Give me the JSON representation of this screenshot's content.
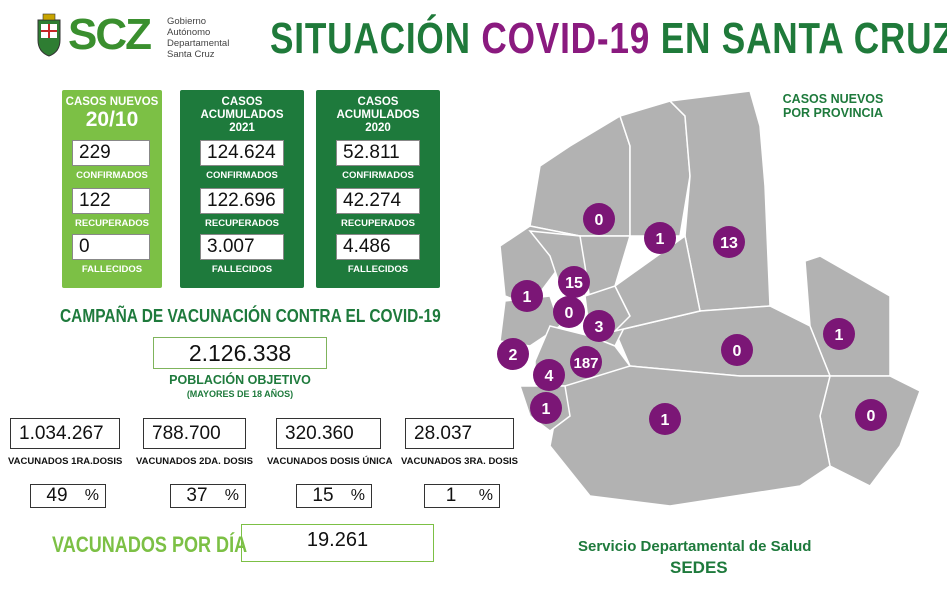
{
  "logo": {
    "brand": "SCZ",
    "subtitle_lines": [
      "Gobierno",
      "Autónomo",
      "Departamental",
      "Santa Cruz"
    ]
  },
  "title": {
    "part1": "SITUACIÓN ",
    "part2": "COVID-19",
    "part3": " EN SANTA CRUZ"
  },
  "panel_new": {
    "header": "CASOS NUEVOS",
    "date": "20/10",
    "confirmed": "229",
    "confirmed_label": "CONFIRMADOS",
    "recovered": "122",
    "recovered_label": "RECUPERADOS",
    "deceased": "0",
    "deceased_label": "FALLECIDOS"
  },
  "panel_2021": {
    "header": "CASOS ACUMULADOS",
    "year": "2021",
    "confirmed": "124.624",
    "confirmed_label": "CONFIRMADOS",
    "recovered": "122.696",
    "recovered_label": "RECUPERADOS",
    "deceased": "3.007",
    "deceased_label": "FALLECIDOS"
  },
  "panel_2020": {
    "header": "CASOS ACUMULADOS",
    "year": "2020",
    "confirmed": "52.811",
    "confirmed_label": "CONFIRMADOS",
    "recovered": "42.274",
    "recovered_label": "RECUPERADOS",
    "deceased": "4.486",
    "deceased_label": "FALLECIDOS"
  },
  "campaign": {
    "title": "CAMPAÑA DE VACUNACIÓN CONTRA EL COVID-19",
    "target_value": "2.126.338",
    "target_label": "POBLACIÓN OBJETIVO",
    "target_sub": "(MAYORES DE 18 AÑOS)"
  },
  "vaccinated": [
    {
      "value": "1.034.267",
      "label": "VACUNADOS 1RA.DOSIS",
      "pct": "49"
    },
    {
      "value": "788.700",
      "label": "VACUNADOS 2DA. DOSIS",
      "pct": "37"
    },
    {
      "value": "320.360",
      "label": "VACUNADOS DOSIS ÚNICA",
      "pct": "15"
    },
    {
      "value": "28.037",
      "label": "VACUNADOS 3RA. DOSIS",
      "pct": "1"
    }
  ],
  "pct_symbol": "%",
  "per_day": {
    "label": "VACUNADOS POR DÍA",
    "value": "19.261"
  },
  "map": {
    "title_line1": "CASOS NUEVOS",
    "title_line2": "POR PROVINCIA",
    "province_cases": [
      "0",
      "1",
      "13",
      "15",
      "1",
      "0",
      "3",
      "2",
      "187",
      "4",
      "1",
      "0",
      "1",
      "1",
      "0"
    ],
    "fill_color": "#b2b2b2",
    "marker_color": "#7b1676"
  },
  "footer": {
    "line1": "Servicio Departamental de Salud",
    "line2": "SEDES"
  },
  "colors": {
    "dark_green": "#1e7a3c",
    "light_green": "#7cc045",
    "purple": "#8a1a7f"
  }
}
